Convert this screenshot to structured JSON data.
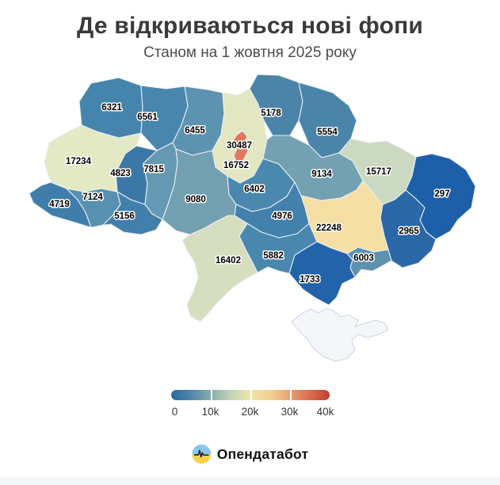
{
  "title": "Де відкриваються нові фопи",
  "subtitle": "Станом на 1 жовтня 2025 року",
  "chart_data": {
    "type": "choropleth",
    "title": "Де відкриваються нові фопи",
    "subtitle": "Станом на 1 жовтня 2025 року",
    "legend_position": "bottom-center",
    "colorbar": {
      "min": 0,
      "max": 40000,
      "ticks": [
        "0",
        "10k",
        "20k",
        "30k",
        "40k"
      ],
      "gradient": [
        "#2a6aa4",
        "#4d87ac",
        "#85ada9",
        "#c2d4b2",
        "#ede6a9",
        "#f2d193",
        "#e7a273",
        "#da6c4d",
        "#c33d33"
      ]
    },
    "regions": [
      {
        "id": "volyn",
        "value": 6321,
        "color": "#4584ad"
      },
      {
        "id": "rivne",
        "value": 6561,
        "color": "#4886ae"
      },
      {
        "id": "zhytomyr",
        "value": 6455,
        "color": "#5c93b1"
      },
      {
        "id": "kyiv_oblast",
        "value": 16752,
        "color": "#e2e7c2"
      },
      {
        "id": "chernihiv",
        "value": 5178,
        "color": "#4a84a9"
      },
      {
        "id": "sumy",
        "value": 5554,
        "color": "#4a84a9"
      },
      {
        "id": "lviv",
        "value": 17234,
        "color": "#e4e9c5"
      },
      {
        "id": "ternopil",
        "value": 4823,
        "color": "#3b78a7"
      },
      {
        "id": "khmelnytskyi",
        "value": 7815,
        "color": "#6699b4"
      },
      {
        "id": "vinnytsia",
        "value": 9080,
        "color": "#72a0b0"
      },
      {
        "id": "zakarpattia",
        "value": 4719,
        "color": "#3f7eaa"
      },
      {
        "id": "ivano_frankivsk",
        "value": 7124,
        "color": "#5890af"
      },
      {
        "id": "chernivtsi",
        "value": 5156,
        "color": "#4280ab"
      },
      {
        "id": "cherkasy",
        "value": 6402,
        "color": "#4b88ae"
      },
      {
        "id": "poltava",
        "value": 9134,
        "color": "#74a1b2"
      },
      {
        "id": "kharkiv",
        "value": 15717,
        "color": "#cbd9c2"
      },
      {
        "id": "luhansk",
        "value": 297,
        "color": "#1d5fa8"
      },
      {
        "id": "donetsk",
        "value": 2965,
        "color": "#2a68a8"
      },
      {
        "id": "dnipropetrovsk",
        "value": 22248,
        "color": "#f5dfa4"
      },
      {
        "id": "kirovohrad",
        "value": 4976,
        "color": "#4181ac"
      },
      {
        "id": "mykolaiv",
        "value": 5882,
        "color": "#4a87ae"
      },
      {
        "id": "odesa",
        "value": 16402,
        "color": "#d5dfbf"
      },
      {
        "id": "kherson",
        "value": 1733,
        "color": "#2263a9"
      },
      {
        "id": "zaporizhzhia",
        "value": 6003,
        "color": "#5c92b0"
      },
      {
        "id": "crimea",
        "value": null,
        "color": "#f5f6f9"
      },
      {
        "id": "kyiv_city",
        "value": 30487,
        "color": "#e0795b"
      }
    ]
  },
  "footer": {
    "brand": "Опендатабот",
    "logo_colors": {
      "top": "#8ac6ee",
      "bottom": "#ffd24d",
      "pulse": "#1e2a38"
    }
  }
}
